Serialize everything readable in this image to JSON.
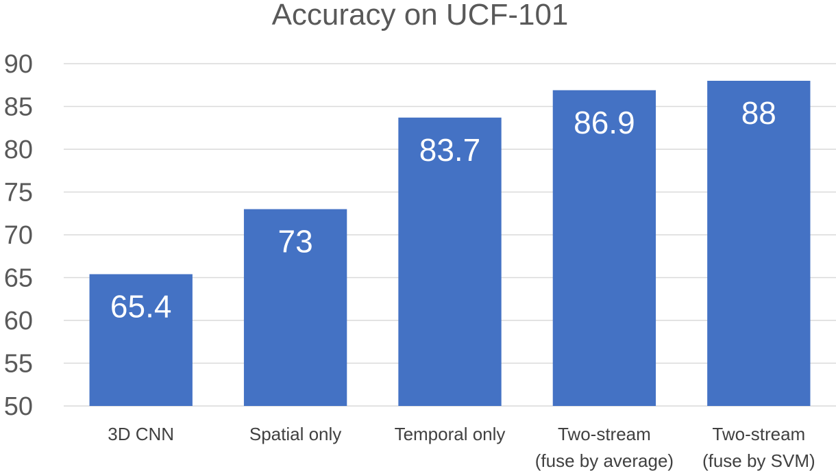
{
  "chart_data": {
    "type": "bar",
    "title": "Accuracy on UCF-101",
    "xlabel": "",
    "ylabel": "",
    "categories": [
      [
        "3D CNN"
      ],
      [
        "Spatial only"
      ],
      [
        "Temporal only"
      ],
      [
        "Two-stream",
        "(fuse by average)"
      ],
      [
        "Two-stream",
        "(fuse by SVM)"
      ]
    ],
    "series": [
      {
        "values": [
          65.4,
          73,
          83.7,
          86.9,
          88
        ],
        "data_labels": [
          "65.4",
          "73",
          "83.7",
          "86.9",
          "88"
        ]
      }
    ],
    "ylim": [
      50,
      90
    ],
    "yticks": [
      50,
      55,
      60,
      65,
      70,
      75,
      80,
      85,
      90
    ],
    "grid": true,
    "legend": "none",
    "colors": {
      "bar": "#4472C4",
      "grid": "#D9D9D9",
      "text": "#595959",
      "label": "#FFFFFF"
    }
  }
}
